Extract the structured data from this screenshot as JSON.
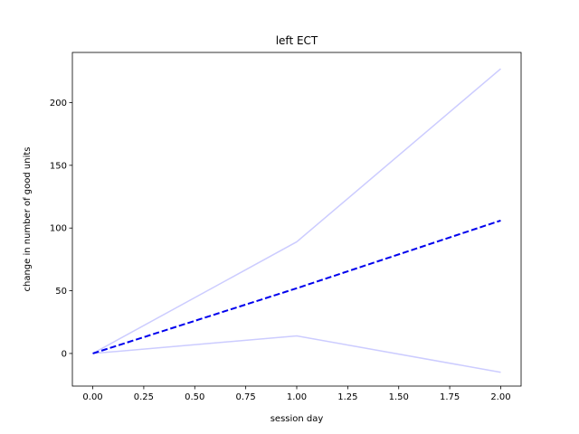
{
  "chart_data": {
    "type": "line",
    "title": "left ECT",
    "xlabel": "session day",
    "ylabel": "change in number of good units",
    "xlim": [
      -0.1,
      2.1
    ],
    "ylim": [
      -26,
      240
    ],
    "xticks": [
      0.0,
      0.25,
      0.5,
      0.75,
      1.0,
      1.25,
      1.5,
      1.75,
      2.0
    ],
    "xtick_labels": [
      "0.00",
      "0.25",
      "0.50",
      "0.75",
      "1.00",
      "1.25",
      "1.50",
      "1.75",
      "2.00"
    ],
    "yticks": [
      0,
      50,
      100,
      150,
      200
    ],
    "ytick_labels": [
      "0",
      "50",
      "100",
      "150",
      "200"
    ],
    "grid": false,
    "series": [
      {
        "x": [
          0,
          1,
          2
        ],
        "values": [
          0,
          89,
          227
        ],
        "color": "#ccccff",
        "style": "solid"
      },
      {
        "x": [
          0,
          1,
          2
        ],
        "values": [
          0,
          14,
          -15
        ],
        "color": "#ccccff",
        "style": "solid"
      },
      {
        "x": [
          0,
          1,
          2
        ],
        "values": [
          0,
          52,
          106
        ],
        "color": "#0000ee",
        "style": "dashed"
      }
    ]
  }
}
